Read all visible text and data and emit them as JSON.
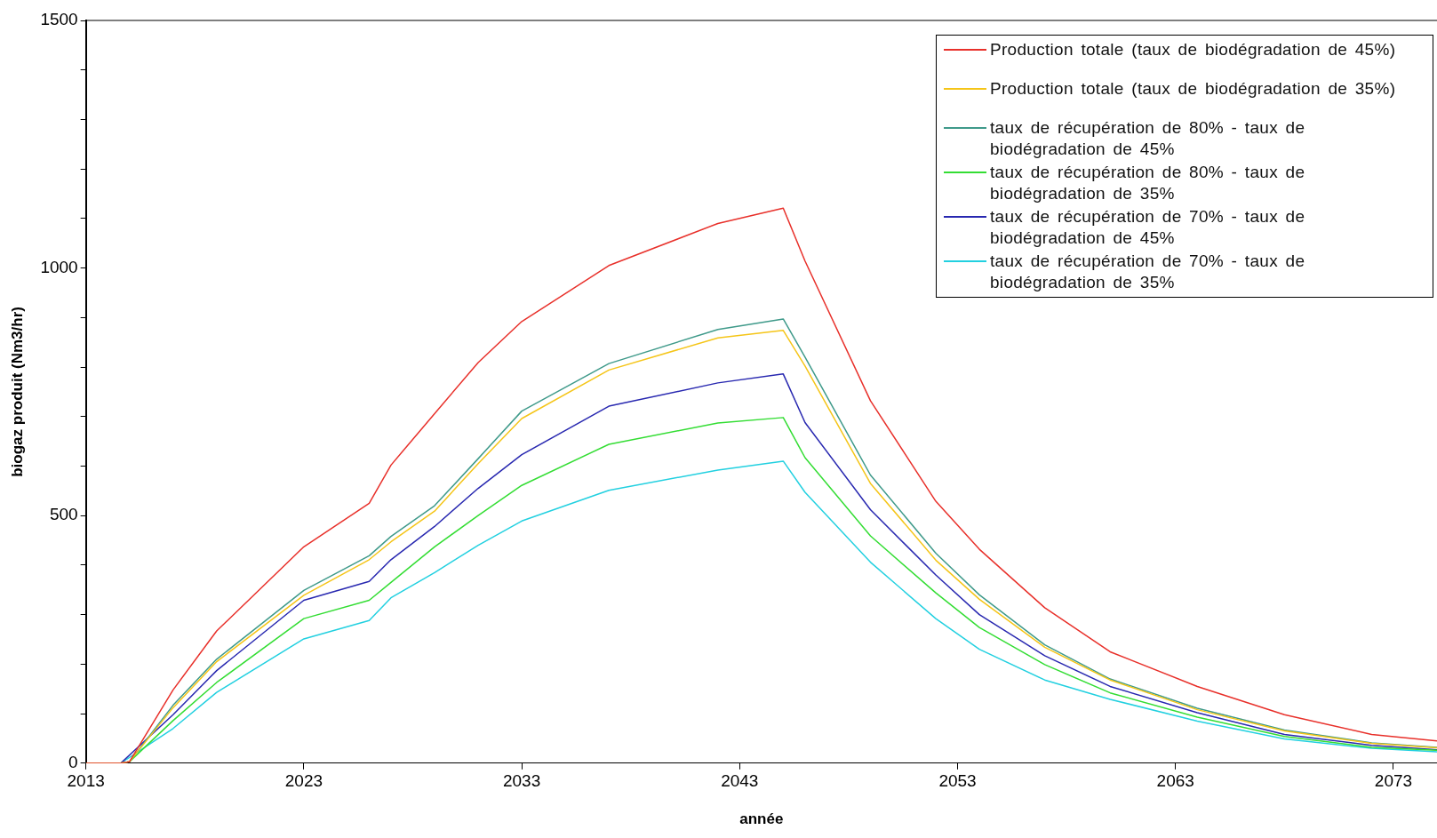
{
  "chart_data": {
    "type": "line",
    "xlabel": "année",
    "ylabel": "biogaz produit (Nm3/hr)",
    "x": [
      2013,
      2014.6,
      2015,
      2017,
      2019,
      2023,
      2026,
      2027,
      2029,
      2031,
      2033,
      2037,
      2042,
      2045,
      2046,
      2049,
      2052,
      2054,
      2057,
      2060,
      2064,
      2068,
      2072,
      2075
    ],
    "series": [
      {
        "name": "Production totale (taux de biodégradation  de 45%)",
        "color": "#e8302a",
        "values": [
          0,
          0,
          3,
          148,
          267,
          437,
          525,
          602,
          706,
          809,
          892,
          1005,
          1090,
          1121,
          1014,
          732,
          529,
          432,
          314,
          225,
          155,
          98,
          58,
          45
        ]
      },
      {
        "name": "Production totale (taux de biodégradation  de 35%)",
        "color": "#f5c518",
        "values": [
          0,
          0,
          3,
          112,
          205,
          339,
          411,
          447,
          509,
          605,
          696,
          794,
          859,
          874,
          802,
          565,
          410,
          331,
          234,
          168,
          108,
          65,
          40,
          31
        ]
      },
      {
        "name": "taux de récupération  de 80% - taux de biodégradation de 45%",
        "color": "#3f9a8a",
        "values": [
          0,
          0,
          3,
          117,
          210,
          349,
          419,
          458,
          520,
          615,
          711,
          807,
          876,
          897,
          820,
          582,
          424,
          340,
          239,
          170,
          111,
          67,
          41,
          32
        ]
      },
      {
        "name": "taux de récupération  de 80% - taux de biodégradation de 35%",
        "color": "#33dd33",
        "values": [
          0,
          0,
          3,
          86,
          163,
          292,
          329,
          365,
          437,
          500,
          561,
          644,
          687,
          698,
          617,
          459,
          344,
          274,
          199,
          142,
          93,
          54,
          32,
          26
        ]
      },
      {
        "name": "taux de récupération  de 70% - taux de biodégradation de 45%",
        "color": "#2828b0",
        "values": [
          0,
          0,
          null,
          98,
          187,
          329,
          367,
          411,
          478,
          555,
          623,
          721,
          768,
          786,
          688,
          512,
          380,
          300,
          217,
          155,
          102,
          58,
          36,
          27
        ]
      },
      {
        "name": "taux de récupération  de 70% - taux de biodégradation de 35%",
        "color": "#22d0e0",
        "values": [
          0,
          0,
          null,
          70,
          143,
          251,
          288,
          334,
          385,
          440,
          489,
          551,
          592,
          610,
          547,
          406,
          292,
          230,
          168,
          129,
          85,
          49,
          30,
          23
        ]
      }
    ],
    "xlim": [
      2013,
      2075
    ],
    "xticks": [
      2013,
      2023,
      2033,
      2043,
      2053,
      2063,
      2073
    ],
    "ylim": [
      0,
      1500
    ],
    "yticks": [
      0,
      {
        "value": 100,
        "label": null
      },
      {
        "value": 200,
        "label": null
      },
      {
        "value": 300,
        "label": null
      },
      {
        "value": 400,
        "label": null
      },
      500,
      {
        "value": 600,
        "label": null
      },
      {
        "value": 700,
        "label": null
      },
      {
        "value": 800,
        "label": null
      },
      {
        "value": 900,
        "label": null
      },
      1000,
      {
        "value": 1100,
        "label": null
      },
      {
        "value": 1200,
        "label": null
      },
      {
        "value": 1300,
        "label": null
      },
      {
        "value": 1400,
        "label": null
      },
      1500
    ],
    "grid": false,
    "legend": "top right",
    "marker": "none",
    "line_style": "solid"
  }
}
